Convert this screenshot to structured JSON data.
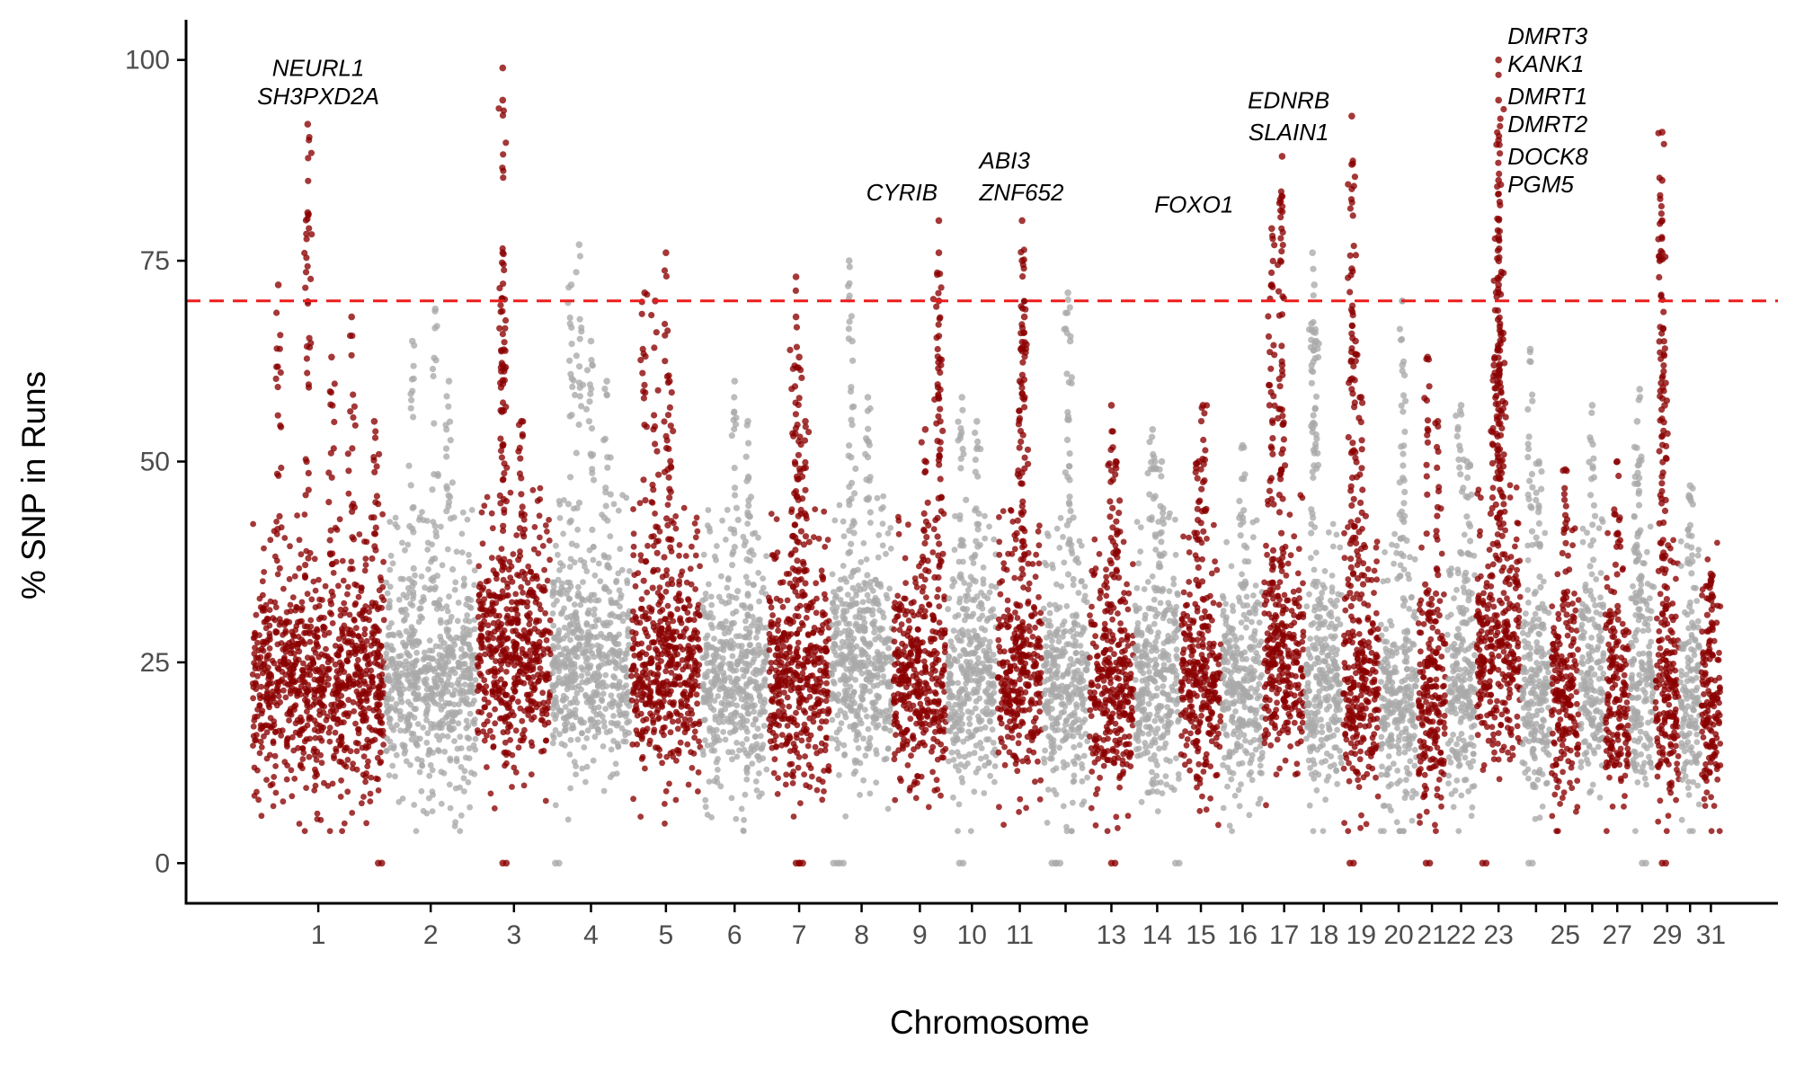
{
  "chart_data": {
    "type": "scatter",
    "subtype": "manhattan",
    "title": "",
    "xlabel": "Chromosome",
    "ylabel": "% SNP in Runs",
    "ylim": [
      -5,
      105
    ],
    "yticks": [
      0,
      25,
      50,
      75,
      100
    ],
    "grid": false,
    "legend": "none",
    "threshold": {
      "value": 70,
      "color": "#ee1c1c",
      "style": "dashed"
    },
    "colors": {
      "odd": "#8b0000",
      "even": "#a9a9a9",
      "axis": "#000000",
      "tick_text": "#4d4d4d"
    },
    "chromosomes": [
      {
        "chr": 1,
        "label": "1",
        "color": "odd",
        "median": 22,
        "peaks": [
          [
            0.2,
            72
          ],
          [
            0.42,
            92
          ],
          [
            0.42,
            81
          ],
          [
            0.6,
            63
          ],
          [
            0.75,
            68
          ],
          [
            0.92,
            55
          ]
        ],
        "zeros": [
          0.95
        ]
      },
      {
        "chr": 2,
        "label": "2",
        "color": "even",
        "median": 22,
        "peaks": [
          [
            0.3,
            65
          ],
          [
            0.55,
            69
          ],
          [
            0.7,
            60
          ]
        ]
      },
      {
        "chr": 3,
        "label": "3",
        "color": "odd",
        "median": 25,
        "peaks": [
          [
            0.35,
            99
          ],
          [
            0.35,
            95
          ],
          [
            0.35,
            76
          ],
          [
            0.35,
            62
          ],
          [
            0.6,
            55
          ]
        ],
        "zeros": [
          0.35
        ]
      },
      {
        "chr": 4,
        "label": "4",
        "color": "even",
        "median": 24,
        "peaks": [
          [
            0.25,
            72
          ],
          [
            0.35,
            77
          ],
          [
            0.5,
            65
          ],
          [
            0.7,
            60
          ]
        ],
        "zeros": [
          0.05
        ]
      },
      {
        "chr": 5,
        "label": "5",
        "color": "odd",
        "median": 23,
        "peaks": [
          [
            0.2,
            71
          ],
          [
            0.35,
            70
          ],
          [
            0.5,
            76
          ],
          [
            0.55,
            60
          ]
        ]
      },
      {
        "chr": 6,
        "label": "6",
        "color": "even",
        "median": 22,
        "peaks": [
          [
            0.5,
            60
          ],
          [
            0.7,
            55
          ]
        ]
      },
      {
        "chr": 7,
        "label": "7",
        "color": "odd",
        "median": 23,
        "peaks": [
          [
            0.45,
            73
          ],
          [
            0.45,
            68
          ],
          [
            0.5,
            63
          ],
          [
            0.6,
            55
          ]
        ],
        "zeros": [
          0.45,
          0.5
        ]
      },
      {
        "chr": 8,
        "label": "8",
        "color": "even",
        "median": 24,
        "peaks": [
          [
            0.3,
            75
          ],
          [
            0.35,
            65
          ],
          [
            0.6,
            58
          ]
        ],
        "zeros": [
          0.05,
          0.15
        ]
      },
      {
        "chr": 9,
        "label": "9",
        "color": "odd",
        "median": 22,
        "peaks": [
          [
            0.6,
            54
          ],
          [
            0.85,
            80
          ],
          [
            0.85,
            76
          ],
          [
            0.85,
            70
          ]
        ]
      },
      {
        "chr": 10,
        "label": "10",
        "color": "even",
        "median": 22,
        "peaks": [
          [
            0.3,
            58
          ],
          [
            0.6,
            55
          ]
        ],
        "zeros": [
          0.25
        ]
      },
      {
        "chr": 11,
        "label": "11",
        "color": "odd",
        "median": 22,
        "peaks": [
          [
            0.55,
            80
          ],
          [
            0.55,
            75
          ],
          [
            0.6,
            68
          ],
          [
            0.5,
            60
          ]
        ]
      },
      {
        "chr": 12,
        "label": "",
        "color": "even",
        "median": 21,
        "peaks": [
          [
            0.55,
            71
          ],
          [
            0.6,
            65
          ]
        ],
        "zeros": [
          0.2,
          0.3
        ]
      },
      {
        "chr": 13,
        "label": "13",
        "color": "odd",
        "median": 21,
        "peaks": [
          [
            0.5,
            57
          ],
          [
            0.6,
            50
          ]
        ],
        "zeros": [
          0.5
        ]
      },
      {
        "chr": 14,
        "label": "14",
        "color": "even",
        "median": 22,
        "peaks": [
          [
            0.4,
            54
          ],
          [
            0.6,
            50
          ]
        ],
        "zeros": [
          0.9
        ]
      },
      {
        "chr": 15,
        "label": "15",
        "color": "odd",
        "median": 22,
        "peaks": [
          [
            0.55,
            57
          ],
          [
            0.45,
            50
          ]
        ]
      },
      {
        "chr": 16,
        "label": "16",
        "color": "even",
        "median": 21,
        "peaks": [
          [
            0.5,
            52
          ]
        ]
      },
      {
        "chr": 17,
        "label": "17",
        "color": "odd",
        "median": 24,
        "peaks": [
          [
            0.2,
            79
          ],
          [
            0.2,
            72
          ],
          [
            0.45,
            88
          ],
          [
            0.45,
            83
          ],
          [
            0.45,
            62
          ]
        ]
      },
      {
        "chr": 18,
        "label": "18",
        "color": "even",
        "median": 21,
        "peaks": [
          [
            0.2,
            76
          ],
          [
            0.25,
            72
          ],
          [
            0.3,
            65
          ]
        ]
      },
      {
        "chr": 19,
        "label": "19",
        "color": "odd",
        "median": 20,
        "peaks": [
          [
            0.25,
            93
          ],
          [
            0.25,
            87
          ],
          [
            0.25,
            74
          ],
          [
            0.35,
            65
          ],
          [
            0.5,
            58
          ]
        ],
        "zeros": [
          0.2
        ]
      },
      {
        "chr": 20,
        "label": "20",
        "color": "even",
        "median": 19,
        "peaks": [
          [
            0.6,
            70
          ],
          [
            0.6,
            62
          ]
        ]
      },
      {
        "chr": 21,
        "label": "21",
        "color": "odd",
        "median": 20,
        "peaks": [
          [
            0.35,
            63
          ],
          [
            0.7,
            55
          ]
        ],
        "zeros": [
          0.3
        ]
      },
      {
        "chr": 22,
        "label": "22",
        "color": "even",
        "median": 21,
        "peaks": [
          [
            0.5,
            57
          ],
          [
            0.7,
            50
          ]
        ]
      },
      {
        "chr": 23,
        "label": "23",
        "color": "odd",
        "median": 26,
        "peaks": [
          [
            0.5,
            100
          ],
          [
            0.5,
            95
          ],
          [
            0.5,
            90
          ],
          [
            0.5,
            85
          ],
          [
            0.5,
            78
          ],
          [
            0.5,
            72
          ],
          [
            0.6,
            66
          ],
          [
            0.4,
            62
          ]
        ],
        "zeros": [
          0.15
        ]
      },
      {
        "chr": 24,
        "label": "",
        "color": "even",
        "median": 21,
        "peaks": [
          [
            0.3,
            64
          ],
          [
            0.6,
            50
          ]
        ],
        "zeros": [
          0.25
        ]
      },
      {
        "chr": 25,
        "label": "25",
        "color": "odd",
        "median": 20,
        "peaks": [
          [
            0.5,
            49
          ]
        ]
      },
      {
        "chr": 26,
        "label": "",
        "color": "even",
        "median": 21,
        "peaks": [
          [
            0.5,
            57
          ]
        ]
      },
      {
        "chr": 27,
        "label": "27",
        "color": "odd",
        "median": 20,
        "peaks": [
          [
            0.5,
            50
          ]
        ]
      },
      {
        "chr": 28,
        "label": "",
        "color": "even",
        "median": 22,
        "peaks": [
          [
            0.4,
            59
          ],
          [
            0.3,
            55
          ]
        ],
        "zeros": [
          0.5
        ]
      },
      {
        "chr": 29,
        "label": "29",
        "color": "odd",
        "median": 19,
        "peaks": [
          [
            0.3,
            91
          ],
          [
            0.3,
            85
          ],
          [
            0.3,
            80
          ],
          [
            0.3,
            76
          ],
          [
            0.4,
            57
          ]
        ],
        "zeros": [
          0.3
        ]
      },
      {
        "chr": 30,
        "label": "",
        "color": "even",
        "median": 19,
        "peaks": [
          [
            0.5,
            47
          ]
        ]
      },
      {
        "chr": 31,
        "label": "31",
        "color": "odd",
        "median": 18,
        "peaks": [
          [
            0.5,
            36
          ]
        ]
      }
    ],
    "annotations": [
      {
        "text": "NEURL1",
        "chr": 1,
        "y": 98
      },
      {
        "text": "SH3PXD2A",
        "chr": 1,
        "y": 94.5
      },
      {
        "text": "CYRIB",
        "chr": 9,
        "y": 82.5
      },
      {
        "text": "ABI3",
        "chr": 11,
        "y": 86.5
      },
      {
        "text": "ZNF652",
        "chr": 11,
        "y": 82.5
      },
      {
        "text": "FOXO1",
        "chr": 16,
        "y": 81
      },
      {
        "text": "EDNRB",
        "chr": 17,
        "y": 94
      },
      {
        "text": "SLAIN1",
        "chr": 17,
        "y": 90
      },
      {
        "text": "DMRT3",
        "chr": 23,
        "y": 102
      },
      {
        "text": "KANK1",
        "chr": 23,
        "y": 98.5
      },
      {
        "text": "DMRT1",
        "chr": 23,
        "y": 94.5
      },
      {
        "text": "DMRT2",
        "chr": 23,
        "y": 91
      },
      {
        "text": "DOCK8",
        "chr": 23,
        "y": 87
      },
      {
        "text": "PGM5",
        "chr": 23,
        "y": 83.5
      }
    ]
  }
}
